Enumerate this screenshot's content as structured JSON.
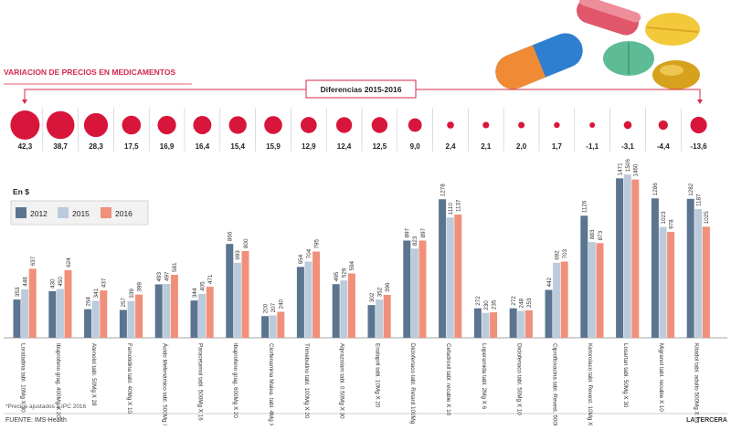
{
  "header": {
    "title": "VARIACION DE PRECIOS EN MEDICAMENTOS",
    "diff_label": "Diferencias 2015-2016"
  },
  "legend": {
    "unit": "En $",
    "items": [
      {
        "label": "2012",
        "color": "#5b7590"
      },
      {
        "label": "2015",
        "color": "#bccbdb"
      },
      {
        "label": "2016",
        "color": "#f0907b"
      }
    ]
  },
  "footer": {
    "note": "*Precios ajustados a IPC 2016",
    "source": "FUENTE: IMS-Health",
    "brand": "LA TERCERA"
  },
  "colors": {
    "title": "#d42a4a",
    "bubble": "#d8153a",
    "bar_2012": "#5b7590",
    "bar_2015": "#bccbdb",
    "bar_2016": "#f0907b"
  },
  "chart_data": {
    "type": "bar",
    "title": "VARIACION DE PRECIOS EN MEDICAMENTOS",
    "ylabel": "En $",
    "ylim": [
      0,
      1600
    ],
    "legend_position": "top-left",
    "categories": [
      "Loratadina tabl. 10Mg X 30",
      "Ibuprofeno grag. 400Mg X 20",
      "Atenolol tabl. 50Mg X 28",
      "Famotidina tabl. 40Mg X 10",
      "Ácido Mefenámico tabl. 500Mg X 10",
      "Paracetamol tabl. 500Mg X 16",
      "Ibuprofeno grag. 600Mg X 20",
      "Clorfenamina Malea. tabl. 4Mg X 20",
      "Trimebutino tabl. 100Mg X 20",
      "Alprazolam tabl. 0.50Mg X 30",
      "Enalapril tabl. 10Mg X 20",
      "Diclofenaco tabl. Retard 100Mg X 8",
      "Cefadroxil tabl. recubie X 10",
      "Loperamida tabl. 2Mg X 6",
      "Diclofenaco tabl. 50Mg X 10",
      "Ciprofloxacina tabl. Revest. 500Mg X 6",
      "Ketorolaco tabl. Revest. 10Mg X 10",
      "Losartan tabl. 50Mg X 30",
      "Migranol tabl. recubie X 10",
      "Kitadol tabl. adulto 500Mg X 24"
    ],
    "series": [
      {
        "name": "2012",
        "values": [
          353,
          430,
          264,
          257,
          493,
          344,
          866,
          200,
          654,
          495,
          302,
          897,
          1278,
          272,
          272,
          442,
          1126,
          1471,
          1286,
          1282
        ]
      },
      {
        "name": "2015",
        "values": [
          448,
          450,
          341,
          339,
          497,
          405,
          693,
          207,
          704,
          529,
          352,
          823,
          1110,
          230,
          248,
          692,
          883,
          1506,
          1023,
          1187
        ]
      },
      {
        "name": "2016",
        "values": [
          637,
          624,
          437,
          399,
          581,
          471,
          800,
          240,
          795,
          594,
          396,
          897,
          1137,
          235,
          253,
          703,
          873,
          1460,
          978,
          1025
        ]
      }
    ],
    "differences": [
      "42,3",
      "38,7",
      "28,3",
      "17,5",
      "16,9",
      "16,4",
      "15,4",
      "15,9",
      "12,9",
      "12,4",
      "12,5",
      "9,0",
      "2,4",
      "2,1",
      "2,0",
      "1,7",
      "-1,1",
      "-3,1",
      "-4,4",
      "-13,6"
    ],
    "difference_values": [
      42.3,
      38.7,
      28.3,
      17.5,
      16.9,
      16.4,
      15.4,
      15.9,
      12.9,
      12.4,
      12.5,
      9.0,
      2.4,
      2.1,
      2.0,
      1.7,
      -1.1,
      -3.1,
      -4.4,
      -13.6
    ]
  }
}
